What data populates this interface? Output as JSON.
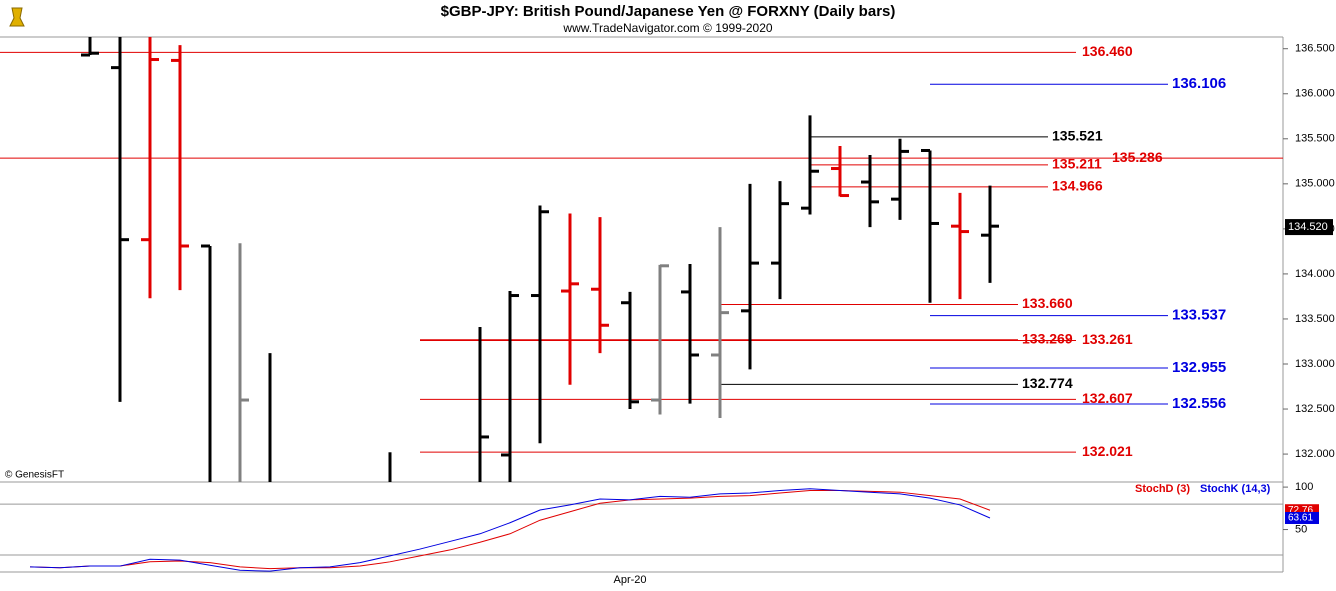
{
  "chart_data": [
    {
      "type": "ohlc",
      "title": "$GBP-JPY:  British Pound/Japanese Yen @ FORXNY  (Daily bars)",
      "subtitle": "www.TradeNavigator.com © 1999-2020",
      "footnote": "© GenesisFT",
      "categories": [
        null,
        null,
        null,
        null,
        null,
        null,
        null,
        null,
        null,
        null,
        null,
        null,
        null,
        null,
        null,
        null,
        null,
        null,
        null,
        null,
        "Apr-20",
        null,
        null,
        null,
        null,
        null,
        null,
        null,
        null,
        null,
        null,
        null,
        null
      ],
      "open": [
        null,
        null,
        136.43,
        136.29,
        134.38,
        136.37,
        134.31,
        131.6,
        131.6,
        null,
        null,
        null,
        131.6,
        null,
        null,
        131.5,
        131.99,
        133.76,
        133.81,
        133.83,
        133.68,
        132.6,
        133.8,
        133.1,
        133.59,
        134.12,
        134.73,
        135.17,
        135.02,
        134.83,
        135.37,
        134.53,
        134.43
      ],
      "high": [
        null,
        null,
        136.75,
        136.8,
        136.8,
        136.54,
        134.31,
        134.34,
        133.12,
        null,
        null,
        null,
        132.02,
        null,
        null,
        133.41,
        133.81,
        134.76,
        134.67,
        134.63,
        133.8,
        134.1,
        134.11,
        134.52,
        135.0,
        135.03,
        135.76,
        135.42,
        135.32,
        135.5,
        135.37,
        134.9,
        134.98
      ],
      "low": [
        null,
        null,
        136.43,
        132.58,
        133.73,
        133.82,
        131.5,
        131.4,
        131.4,
        null,
        null,
        null,
        131.4,
        null,
        null,
        131.4,
        131.5,
        132.12,
        132.77,
        133.12,
        132.5,
        132.44,
        132.56,
        132.4,
        132.94,
        133.72,
        134.66,
        134.86,
        134.52,
        134.6,
        133.68,
        133.72,
        133.9
      ],
      "close": [
        null,
        null,
        136.45,
        134.38,
        136.38,
        134.31,
        131.6,
        132.6,
        131.6,
        null,
        null,
        null,
        131.6,
        null,
        null,
        132.19,
        133.76,
        134.69,
        133.89,
        133.43,
        132.58,
        134.09,
        133.1,
        133.57,
        134.12,
        134.78,
        135.14,
        134.87,
        134.8,
        135.36,
        134.56,
        134.47,
        134.53
      ],
      "bar_colors": [
        null,
        null,
        "#000000",
        "#000000",
        "#e00000",
        "#e00000",
        "#000000",
        "#808080",
        "#000000",
        null,
        null,
        null,
        "#000000",
        null,
        null,
        "#000000",
        "#000000",
        "#000000",
        "#e00000",
        "#e00000",
        "#000000",
        "#808080",
        "#000000",
        "#808080",
        "#000000",
        "#000000",
        "#000000",
        "#e00000",
        "#000000",
        "#000000",
        "#000000",
        "#e00000",
        "#000000"
      ],
      "ylim": [
        131.69,
        136.63
      ],
      "yticks": [
        {
          "value": 132,
          "label": "132.000"
        },
        {
          "value": 132.5,
          "label": "132.500"
        },
        {
          "value": 133,
          "label": "133.000"
        },
        {
          "value": 133.5,
          "label": "133.500"
        },
        {
          "value": 134,
          "label": "134.000"
        },
        {
          "value": 134.5,
          "label": "134.500"
        },
        {
          "value": 135,
          "label": "135.000"
        },
        {
          "value": 135.5,
          "label": "135.500"
        },
        {
          "value": 136,
          "label": "136.000"
        },
        {
          "value": 136.5,
          "label": "136.500"
        }
      ],
      "last_price": {
        "value": 134.52,
        "label": "134.520"
      },
      "levels": [
        {
          "value": 136.46,
          "label": "136.460",
          "color": "#e00000"
        },
        {
          "value": 136.106,
          "label": "136.106",
          "color": "#0000e0",
          "from": 30
        },
        {
          "value": 135.521,
          "label": "135.521",
          "color": "#000000",
          "from": 26
        },
        {
          "value": 135.286,
          "label": "135.286",
          "color": "#e00000"
        },
        {
          "value": 135.211,
          "label": "135.211",
          "color": "#e00000",
          "from": 26
        },
        {
          "value": 134.966,
          "label": "134.966",
          "color": "#e00000",
          "from": 26
        },
        {
          "value": 133.66,
          "label": "133.660",
          "color": "#e00000",
          "from": 23
        },
        {
          "value": 133.537,
          "label": "133.537",
          "color": "#0000e0",
          "from": 30
        },
        {
          "value": 133.269,
          "label": "133.269",
          "color": "#e00000",
          "from": 13
        },
        {
          "value": 133.261,
          "label": "133.261",
          "color": "#e00000",
          "from": 13
        },
        {
          "value": 132.955,
          "label": "132.955",
          "color": "#0000e0",
          "from": 30
        },
        {
          "value": 132.774,
          "label": "132.774",
          "color": "#000000",
          "from": 23
        },
        {
          "value": 132.607,
          "label": "132.607",
          "color": "#e00000",
          "from": 13
        },
        {
          "value": 132.556,
          "label": "132.556",
          "color": "#0000e0",
          "from": 30
        },
        {
          "value": 132.021,
          "label": "132.021",
          "color": "#e00000",
          "from": 13
        }
      ]
    },
    {
      "type": "line",
      "series": [
        {
          "name": "StochD (3)",
          "color": "#e00000",
          "values": [
            6,
            5,
            7,
            7,
            12,
            13,
            11,
            6,
            4,
            5,
            5,
            7,
            12,
            19,
            26,
            35,
            45,
            61,
            71,
            81,
            85,
            86,
            87,
            89,
            90,
            93,
            96,
            96,
            95,
            94,
            90,
            86,
            72.76
          ]
        },
        {
          "name": "StochK (14,3)",
          "color": "#0000e0",
          "values": [
            6,
            5,
            7,
            7,
            15,
            14,
            8,
            2,
            1,
            5,
            6,
            11,
            19,
            27,
            36,
            45,
            58,
            73,
            79,
            86,
            85,
            89,
            88,
            92,
            93,
            96,
            98,
            96,
            94,
            92,
            87,
            79,
            63.61
          ]
        }
      ],
      "ylim": [
        0,
        106
      ],
      "yticks": [
        50,
        100
      ],
      "levels": [
        80,
        20
      ]
    }
  ]
}
